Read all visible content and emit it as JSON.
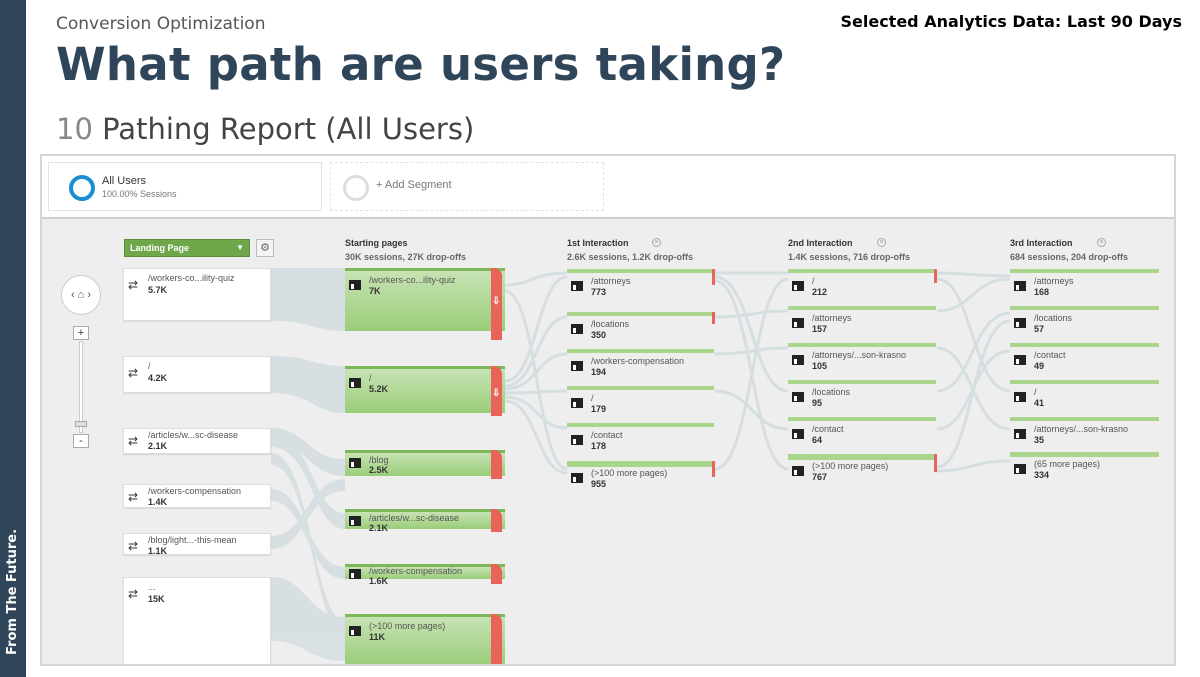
{
  "sidebar_text": "From The Future.",
  "eyebrow": "Conversion Optimization",
  "top_right": "Selected Analytics Data: Last 90 Days",
  "headline": "What path are users taking?",
  "subhead_num": "10",
  "subhead_text": "Pathing Report (All Users)",
  "segments": {
    "all_users_title": "All Users",
    "all_users_sub": "100.00% Sessions",
    "add_segment": "+ Add Segment"
  },
  "dimension_select": "Landing Page",
  "columns": [
    {
      "title": "Starting pages",
      "sub": "30K sessions, 27K drop-offs"
    },
    {
      "title": "1st Interaction",
      "sub": "2.6K sessions, 1.2K drop-offs"
    },
    {
      "title": "2nd Interaction",
      "sub": "1.4K sessions, 716 drop-offs"
    },
    {
      "title": "3rd Interaction",
      "sub": "684 sessions, 204 drop-offs"
    }
  ],
  "landing_pages": [
    {
      "label": "/workers-co...ility-quiz",
      "value": "5.7K"
    },
    {
      "label": "/",
      "value": "4.2K"
    },
    {
      "label": "/articles/w...sc-disease",
      "value": "2.1K"
    },
    {
      "label": "/workers-compensation",
      "value": "1.4K"
    },
    {
      "label": "/blog/light...-this-mean",
      "value": "1.1K"
    },
    {
      "label": "...",
      "value": "15K"
    }
  ],
  "starting_pages": [
    {
      "label": "/workers-co...ility-quiz",
      "value": "7K"
    },
    {
      "label": "/",
      "value": "5.2K"
    },
    {
      "label": "/blog",
      "value": "2.5K"
    },
    {
      "label": "/articles/w...sc-disease",
      "value": "2.1K"
    },
    {
      "label": "/workers-compensation",
      "value": "1.6K"
    },
    {
      "label": "(>100 more pages)",
      "value": "11K"
    }
  ],
  "first_interaction": [
    {
      "label": "/attorneys",
      "value": "773"
    },
    {
      "label": "/locations",
      "value": "350"
    },
    {
      "label": "/workers-compensation",
      "value": "194"
    },
    {
      "label": "/",
      "value": "179"
    },
    {
      "label": "/contact",
      "value": "178"
    },
    {
      "label": "(>100 more pages)",
      "value": "955"
    }
  ],
  "second_interaction": [
    {
      "label": "/",
      "value": "212"
    },
    {
      "label": "/attorneys",
      "value": "157"
    },
    {
      "label": "/attorneys/...son-krasno",
      "value": "105"
    },
    {
      "label": "/locations",
      "value": "95"
    },
    {
      "label": "/contact",
      "value": "64"
    },
    {
      "label": "(>100 more pages)",
      "value": "767"
    }
  ],
  "third_interaction": [
    {
      "label": "/attorneys",
      "value": "168"
    },
    {
      "label": "/locations",
      "value": "57"
    },
    {
      "label": "/contact",
      "value": "49"
    },
    {
      "label": "/",
      "value": "41"
    },
    {
      "label": "/attorneys/...son-krasno",
      "value": "35"
    },
    {
      "label": "(65 more pages)",
      "value": "334"
    }
  ],
  "colors": {
    "brand": "#2f4559",
    "node_green": "#9acd79",
    "dropoff_red": "#e8645a",
    "segment_blue": "#1a8fd0"
  }
}
